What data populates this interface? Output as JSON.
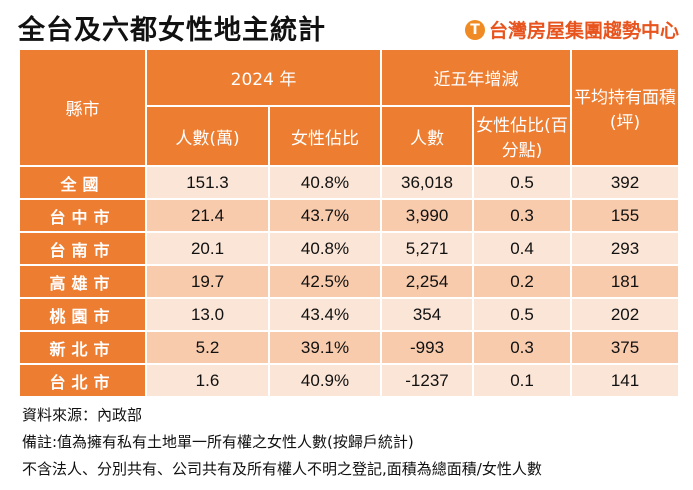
{
  "title": "全台及六都女性地主統計",
  "logo": "台灣房屋集團趨勢中心",
  "headers": {
    "city": "縣市",
    "group_2024": "2024 年",
    "group_5yr": "近五年增減",
    "avg_area": "平均持有面積(坪)",
    "people_wan": "人數(萬)",
    "female_share": "女性佔比",
    "people": "人數",
    "female_share_pp": "女性佔比(百分點)"
  },
  "rows": [
    {
      "city": "全國",
      "people_wan": "151.3",
      "share": "40.8%",
      "change_people": "36,018",
      "change_share": "0.5",
      "area": "392"
    },
    {
      "city": "台中市",
      "people_wan": "21.4",
      "share": "43.7%",
      "change_people": "3,990",
      "change_share": "0.3",
      "area": "155"
    },
    {
      "city": "台南市",
      "people_wan": "20.1",
      "share": "40.8%",
      "change_people": "5,271",
      "change_share": "0.4",
      "area": "293"
    },
    {
      "city": "高雄市",
      "people_wan": "19.7",
      "share": "42.5%",
      "change_people": "2,254",
      "change_share": "0.2",
      "area": "181"
    },
    {
      "city": "桃園市",
      "people_wan": "13.0",
      "share": "43.4%",
      "change_people": "354",
      "change_share": "0.5",
      "area": "202"
    },
    {
      "city": "新北市",
      "people_wan": "5.2",
      "share": "39.1%",
      "change_people": "-993",
      "change_share": "0.3",
      "area": "375"
    },
    {
      "city": "台北市",
      "people_wan": "1.6",
      "share": "40.9%",
      "change_people": "-1237",
      "change_share": "0.1",
      "area": "141"
    }
  ],
  "notes": [
    "資料來源：內政部",
    "備註:值為擁有私有土地單一所有權之女性人數(按歸戶統計)",
    "不含法人、分別共有、公司共有及所有權人不明之登記,面積為總面積/女性人數"
  ],
  "colors": {
    "header": "#ed7d31",
    "row_light": "#fbe5d6",
    "row_dark": "#f8cbad",
    "logo": "#e8541e"
  }
}
